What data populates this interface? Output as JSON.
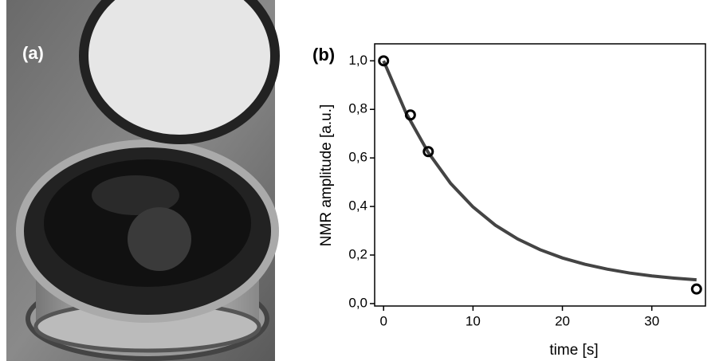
{
  "photo": {
    "label": "(a)"
  },
  "chart_data": {
    "type": "scatter",
    "panel_label": "(b)",
    "xlabel": "time [s]",
    "ylabel": "NMR amplitude [a.u.]",
    "xlim": [
      -1,
      36
    ],
    "xticks": [
      0,
      10,
      20,
      30
    ],
    "ylim": [
      -0.01,
      1.07
    ],
    "yticks": [
      {
        "value": 0,
        "label": "0,0"
      },
      {
        "value": 0.2,
        "label": "0,2"
      },
      {
        "value": 0.4,
        "label": "0,4"
      },
      {
        "value": 0.6,
        "label": "0,6"
      },
      {
        "value": 0.8,
        "label": "0,8"
      },
      {
        "value": 1.0,
        "label": "1,0"
      }
    ],
    "series": [
      {
        "kind": "line",
        "color": "#444444",
        "x": [
          0,
          2.5,
          5,
          7.5,
          10,
          12.5,
          15,
          17.5,
          20,
          22.5,
          25,
          27.5,
          30,
          32.5,
          35
        ],
        "values": [
          1.0,
          0.786,
          0.622,
          0.495,
          0.398,
          0.323,
          0.266,
          0.222,
          0.188,
          0.162,
          0.142,
          0.126,
          0.114,
          0.105,
          0.098
        ]
      },
      {
        "kind": "points",
        "color": "#000000",
        "x": [
          0,
          3,
          5,
          35
        ],
        "values": [
          1.0,
          0.777,
          0.626,
          0.06
        ]
      }
    ]
  }
}
